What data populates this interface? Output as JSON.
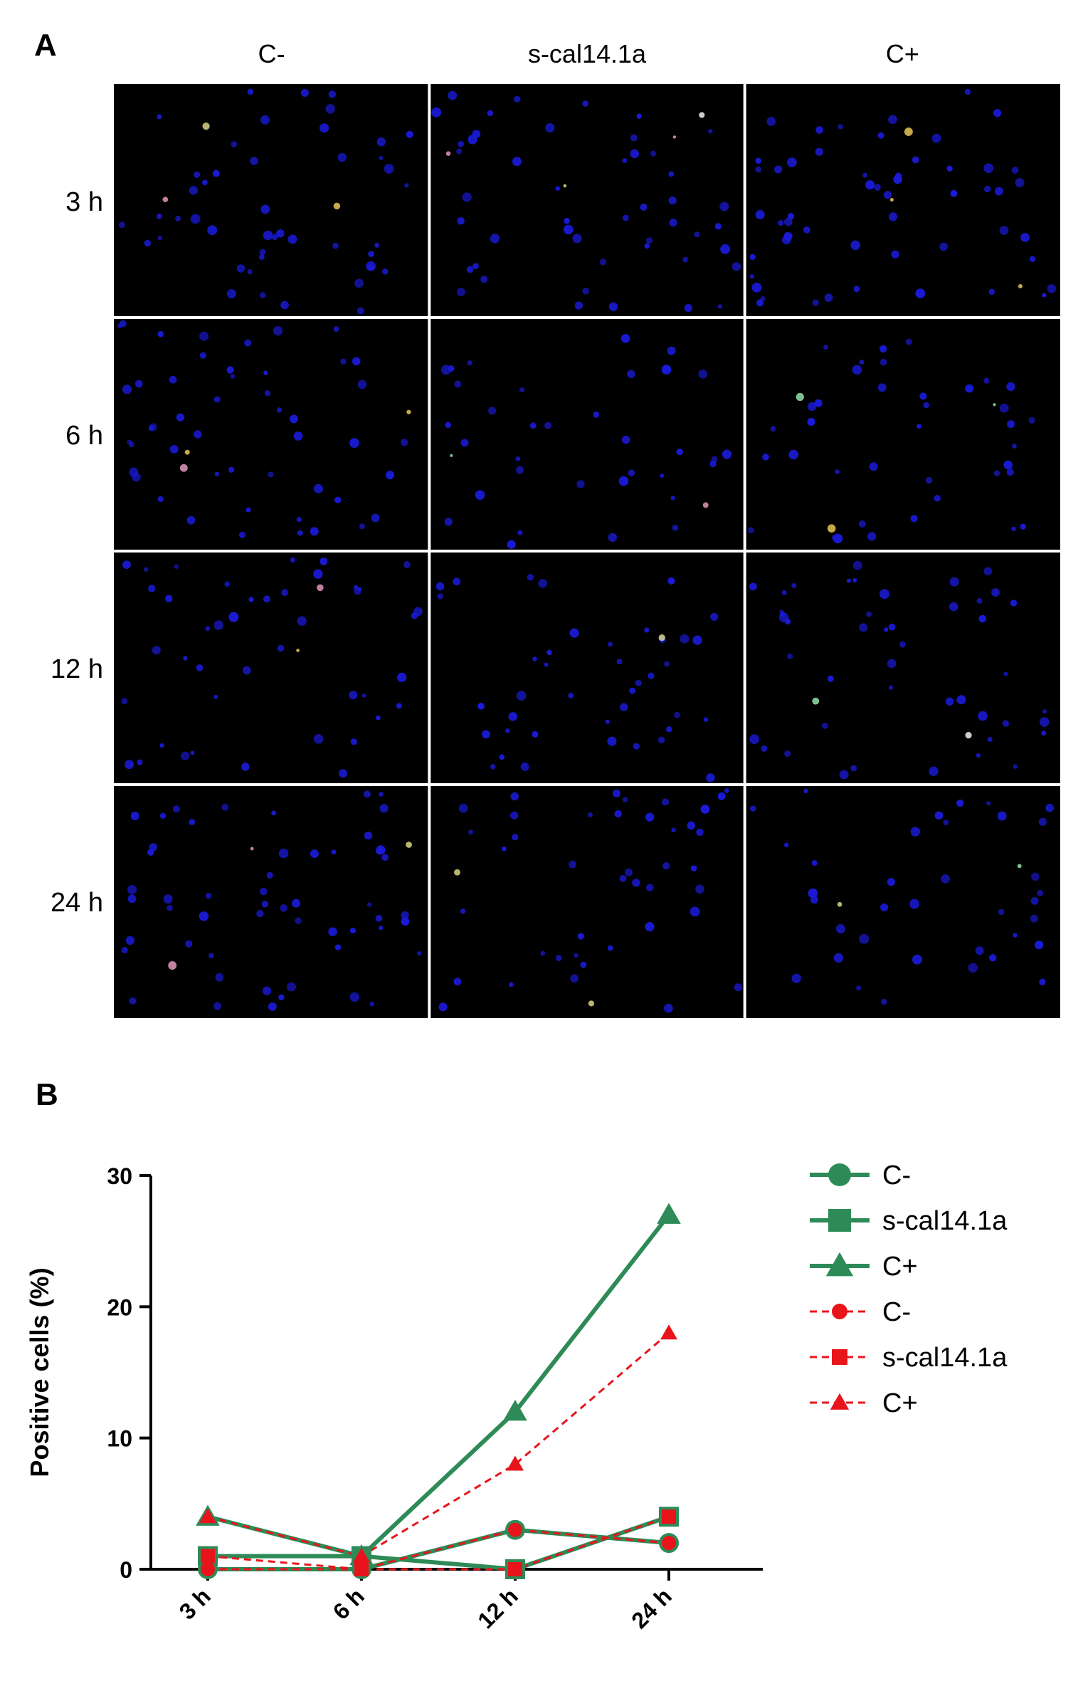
{
  "panel_a": {
    "letter": "A",
    "columns": [
      "C-",
      "s-cal14.1a",
      "C+"
    ],
    "rows": [
      "3 h",
      "6 h",
      "12 h",
      "24 h"
    ]
  },
  "panel_b": {
    "letter": "B"
  },
  "chart_data": {
    "type": "line",
    "x": [
      "3 h",
      "6 h",
      "12 h",
      "24 h"
    ],
    "ylabel": "Positive cells (%)",
    "xlabel": "",
    "ylim": [
      0,
      30
    ],
    "yticks": [
      0,
      10,
      20,
      30
    ],
    "legend_position": "right",
    "series": [
      {
        "name": "C-",
        "values": [
          0,
          0,
          3,
          2
        ],
        "color": "#2e8b57",
        "marker": "circle",
        "line": "solid"
      },
      {
        "name": "s-cal14.1a",
        "values": [
          1,
          1,
          0,
          4
        ],
        "color": "#2e8b57",
        "marker": "square",
        "line": "solid"
      },
      {
        "name": "C+",
        "values": [
          4,
          1,
          12,
          27
        ],
        "color": "#2e8b57",
        "marker": "triangle",
        "line": "solid"
      },
      {
        "name": "C-",
        "values": [
          0,
          0,
          3,
          2
        ],
        "color": "#e8141b",
        "marker": "circle",
        "line": "dashed"
      },
      {
        "name": "s-cal14.1a",
        "values": [
          1,
          0,
          0,
          4
        ],
        "color": "#e8141b",
        "marker": "square",
        "line": "dashed"
      },
      {
        "name": "C+",
        "values": [
          4,
          1,
          8,
          18
        ],
        "color": "#e8141b",
        "marker": "triangle",
        "line": "dashed"
      }
    ]
  },
  "colors": {
    "micrograph_background": "#000000",
    "nuclei": "#1a1ad8",
    "series_green": "#2e8b57",
    "series_red": "#e8141b"
  }
}
